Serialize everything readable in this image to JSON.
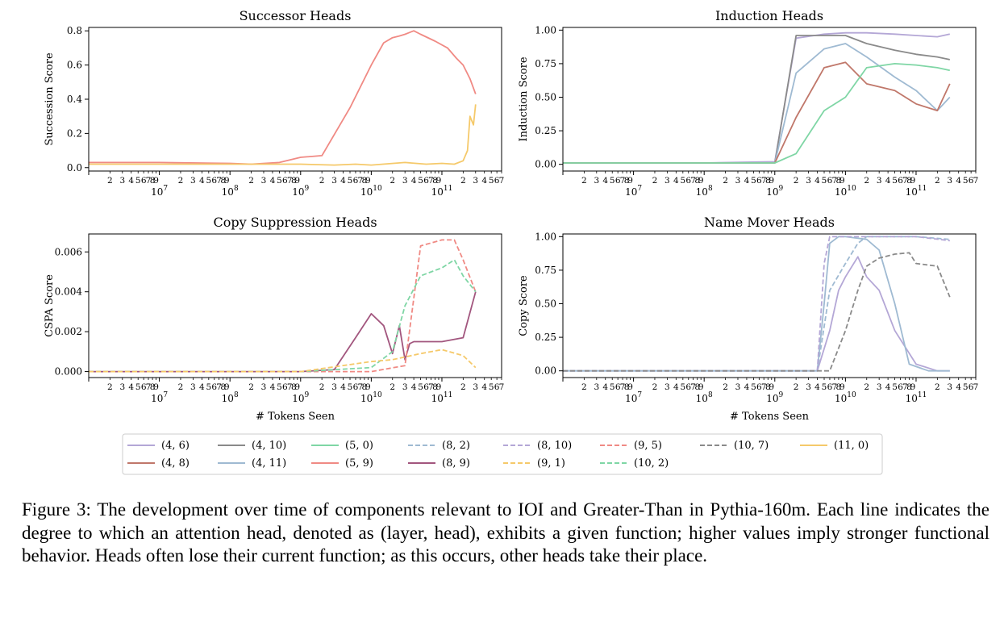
{
  "chart_data": [
    {
      "type": "line",
      "title": "Successor Heads",
      "xlabel": "",
      "ylabel": "Succession Score",
      "xscale": "log",
      "xlim": [
        1000000,
        700000000000
      ],
      "ylim": [
        -0.02,
        0.82
      ],
      "yticks": [
        "0.0",
        "0.2",
        "0.4",
        "0.6",
        "0.8"
      ],
      "series": [
        {
          "name": "(5, 9)",
          "color": "#f08a84",
          "style": "solid",
          "x": [
            1000000,
            10000000,
            100000000,
            200000000,
            500000000,
            1000000000,
            2000000000,
            5000000000,
            10000000000,
            15000000000,
            20000000000,
            25000000000,
            30000000000,
            40000000000,
            50000000000,
            80000000000,
            120000000000,
            160000000000,
            200000000000,
            250000000000,
            300000000000
          ],
          "y": [
            0.03,
            0.03,
            0.025,
            0.02,
            0.03,
            0.06,
            0.07,
            0.35,
            0.6,
            0.73,
            0.76,
            0.77,
            0.78,
            0.8,
            0.78,
            0.74,
            0.7,
            0.64,
            0.6,
            0.52,
            0.43
          ]
        },
        {
          "name": "(11, 0)",
          "color": "#f5c96a",
          "style": "solid",
          "x": [
            1000000,
            10000000,
            100000000,
            1000000000,
            3000000000,
            6000000000,
            10000000000,
            30000000000,
            60000000000,
            100000000000,
            150000000000,
            200000000000,
            230000000000,
            250000000000,
            280000000000,
            300000000000
          ],
          "y": [
            0.02,
            0.02,
            0.02,
            0.02,
            0.015,
            0.02,
            0.015,
            0.03,
            0.02,
            0.025,
            0.02,
            0.04,
            0.1,
            0.3,
            0.25,
            0.37
          ]
        }
      ]
    },
    {
      "type": "line",
      "title": "Induction Heads",
      "xlabel": "",
      "ylabel": "Induction Score",
      "xscale": "log",
      "xlim": [
        1000000,
        700000000000
      ],
      "ylim": [
        -0.05,
        1.02
      ],
      "yticks": [
        "0.00",
        "0.25",
        "0.50",
        "0.75",
        "1.00"
      ],
      "series": [
        {
          "name": "(4, 6)",
          "color": "#b4a7d6",
          "style": "solid",
          "x": [
            1000000,
            100000000,
            1000000000,
            2000000000,
            5000000000,
            10000000000,
            20000000000,
            50000000000,
            100000000000,
            200000000000,
            300000000000
          ],
          "y": [
            0.01,
            0.01,
            0.02,
            0.94,
            0.97,
            0.98,
            0.98,
            0.97,
            0.96,
            0.95,
            0.97
          ]
        },
        {
          "name": "(4, 10)",
          "color": "#8a8a8a",
          "style": "solid",
          "x": [
            1000000,
            100000000,
            1000000000,
            2000000000,
            5000000000,
            10000000000,
            20000000000,
            50000000000,
            100000000000,
            200000000000,
            300000000000
          ],
          "y": [
            0.01,
            0.01,
            0.01,
            0.96,
            0.96,
            0.96,
            0.9,
            0.85,
            0.82,
            0.8,
            0.78
          ]
        },
        {
          "name": "(4, 11)",
          "color": "#9fbad2",
          "style": "solid",
          "x": [
            1000000,
            100000000,
            1000000000,
            2000000000,
            5000000000,
            10000000000,
            20000000000,
            50000000000,
            100000000000,
            200000000000,
            300000000000
          ],
          "y": [
            0.01,
            0.01,
            0.01,
            0.68,
            0.86,
            0.9,
            0.8,
            0.65,
            0.55,
            0.4,
            0.5
          ]
        },
        {
          "name": "(4, 8)",
          "color": "#c0776a",
          "style": "solid",
          "x": [
            1000000,
            100000000,
            1000000000,
            2000000000,
            5000000000,
            10000000000,
            20000000000,
            50000000000,
            100000000000,
            200000000000,
            300000000000
          ],
          "y": [
            0.01,
            0.01,
            0.01,
            0.35,
            0.72,
            0.76,
            0.6,
            0.55,
            0.45,
            0.4,
            0.6
          ]
        },
        {
          "name": "(5, 0)",
          "color": "#7fd6a5",
          "style": "solid",
          "x": [
            1000000,
            100000000,
            1000000000,
            2000000000,
            5000000000,
            10000000000,
            20000000000,
            50000000000,
            100000000000,
            200000000000,
            300000000000
          ],
          "y": [
            0.01,
            0.01,
            0.01,
            0.08,
            0.4,
            0.5,
            0.72,
            0.75,
            0.74,
            0.72,
            0.7
          ]
        }
      ]
    },
    {
      "type": "line",
      "title": "Copy Suppression Heads",
      "xlabel": "# Tokens Seen",
      "ylabel": "CSPA Score",
      "xscale": "log",
      "xlim": [
        1000000,
        700000000000
      ],
      "ylim": [
        -0.0003,
        0.0069
      ],
      "yticks": [
        "0.000",
        "0.002",
        "0.004",
        "0.006"
      ],
      "series": [
        {
          "name": "(8, 9)",
          "color": "#a2567e",
          "style": "solid",
          "x": [
            1000000,
            100000000,
            1000000000,
            3000000000,
            6000000000,
            10000000000,
            15000000000,
            20000000000,
            25000000000,
            30000000000,
            35000000000,
            40000000000,
            60000000000,
            100000000000,
            200000000000,
            300000000000
          ],
          "y": [
            0.0,
            0.0,
            0.0,
            0.0001,
            0.0017,
            0.0029,
            0.0023,
            0.0009,
            0.0023,
            0.0006,
            0.0014,
            0.0015,
            0.0015,
            0.0015,
            0.0017,
            0.004
          ]
        },
        {
          "name": "(9, 5)",
          "color": "#f08a84",
          "style": "dashed",
          "x": [
            1000000,
            100000000,
            1000000000,
            10000000000,
            30000000000,
            50000000000,
            100000000000,
            150000000000,
            200000000000,
            300000000000
          ],
          "y": [
            0.0,
            0.0,
            0.0,
            0.0,
            0.0003,
            0.0063,
            0.0066,
            0.0066,
            0.0056,
            0.004
          ]
        },
        {
          "name": "(10, 2)",
          "color": "#7fd6a5",
          "style": "dashed",
          "x": [
            1000000,
            100000000,
            1000000000,
            10000000000,
            20000000000,
            30000000000,
            50000000000,
            100000000000,
            150000000000,
            200000000000,
            300000000000
          ],
          "y": [
            0.0,
            0.0,
            0.0,
            0.0002,
            0.001,
            0.0033,
            0.0048,
            0.0052,
            0.0056,
            0.0048,
            0.004
          ]
        },
        {
          "name": "(9, 1)",
          "color": "#f5c96a",
          "style": "dashed",
          "x": [
            1000000,
            100000000,
            1000000000,
            10000000000,
            20000000000,
            50000000000,
            100000000000,
            200000000000,
            300000000000
          ],
          "y": [
            0.0,
            0.0,
            0.0,
            0.0005,
            0.0006,
            0.0009,
            0.0011,
            0.0008,
            0.0002
          ]
        }
      ]
    },
    {
      "type": "line",
      "title": "Name Mover Heads",
      "xlabel": "# Tokens Seen",
      "ylabel": "Copy Score",
      "xscale": "log",
      "xlim": [
        1000000,
        700000000000
      ],
      "ylim": [
        -0.05,
        1.02
      ],
      "yticks": [
        "0.00",
        "0.25",
        "0.50",
        "0.75",
        "1.00"
      ],
      "series": [
        {
          "name": "(4, 6)",
          "color": "#b4a7d6",
          "style": "solid",
          "x": [
            1000000,
            100000000,
            1000000000,
            4000000000,
            6000000000,
            8000000000,
            10000000000,
            15000000000,
            20000000000,
            30000000000,
            50000000000,
            100000000000,
            200000000000,
            300000000000
          ],
          "y": [
            0.0,
            0.0,
            0.0,
            0.0,
            0.3,
            0.6,
            0.7,
            0.85,
            0.7,
            0.6,
            0.3,
            0.05,
            0.0,
            0.0
          ]
        },
        {
          "name": "(4, 11)",
          "color": "#9fbad2",
          "style": "solid",
          "x": [
            1000000,
            100000000,
            1000000000,
            4000000000,
            5000000000,
            6000000000,
            8000000000,
            10000000000,
            20000000000,
            30000000000,
            50000000000,
            80000000000,
            150000000000,
            300000000000
          ],
          "y": [
            0.0,
            0.0,
            0.0,
            0.0,
            0.5,
            0.95,
            1.0,
            1.0,
            0.98,
            0.9,
            0.5,
            0.05,
            0.0,
            0.0
          ]
        },
        {
          "name": "(8, 2)",
          "color": "#9fbad2",
          "style": "dashed",
          "x": [
            1000000,
            100000000,
            1000000000,
            4000000000,
            6000000000,
            10000000000,
            15000000000,
            20000000000,
            50000000000,
            100000000000,
            300000000000
          ],
          "y": [
            0.0,
            0.0,
            0.0,
            0.0,
            0.6,
            0.8,
            0.95,
            1.0,
            1.0,
            1.0,
            0.98
          ]
        },
        {
          "name": "(8, 10)",
          "color": "#b4a7d6",
          "style": "dashed",
          "x": [
            1000000,
            100000000,
            1000000000,
            4000000000,
            5000000000,
            6000000000,
            10000000000,
            50000000000,
            100000000000,
            300000000000
          ],
          "y": [
            0.0,
            0.0,
            0.0,
            0.0,
            0.8,
            1.0,
            1.0,
            1.0,
            1.0,
            0.97
          ]
        },
        {
          "name": "(10, 7)",
          "color": "#8a8a8a",
          "style": "dashed",
          "x": [
            1000000,
            100000000,
            1000000000,
            6000000000,
            10000000000,
            15000000000,
            20000000000,
            30000000000,
            50000000000,
            80000000000,
            100000000000,
            200000000000,
            300000000000
          ],
          "y": [
            0.0,
            0.0,
            0.0,
            0.0,
            0.3,
            0.6,
            0.78,
            0.84,
            0.87,
            0.88,
            0.8,
            0.78,
            0.55
          ]
        }
      ]
    }
  ],
  "legend": {
    "entries": [
      {
        "label": "(4, 6)",
        "color": "#b4a7d6",
        "style": "solid"
      },
      {
        "label": "(4, 10)",
        "color": "#8a8a8a",
        "style": "solid"
      },
      {
        "label": "(5, 0)",
        "color": "#7fd6a5",
        "style": "solid"
      },
      {
        "label": "(8, 2)",
        "color": "#9fbad2",
        "style": "dashed"
      },
      {
        "label": "(8, 10)",
        "color": "#b4a7d6",
        "style": "dashed"
      },
      {
        "label": "(9, 5)",
        "color": "#f08a84",
        "style": "dashed"
      },
      {
        "label": "(10, 7)",
        "color": "#8a8a8a",
        "style": "dashed"
      },
      {
        "label": "(11, 0)",
        "color": "#f5c96a",
        "style": "solid"
      },
      {
        "label": "(4, 8)",
        "color": "#c0776a",
        "style": "solid"
      },
      {
        "label": "(4, 11)",
        "color": "#9fbad2",
        "style": "solid"
      },
      {
        "label": "(5, 9)",
        "color": "#f08a84",
        "style": "solid"
      },
      {
        "label": "(8, 9)",
        "color": "#a2567e",
        "style": "solid"
      },
      {
        "label": "(9, 1)",
        "color": "#f5c96a",
        "style": "dashed"
      },
      {
        "label": "(10, 2)",
        "color": "#7fd6a5",
        "style": "dashed"
      }
    ]
  },
  "caption": "Figure 3: The development over time of components relevant to IOI and Greater-Than in Pythia-160m. Each line indicates the degree to which an attention head, denoted as (layer, head), exhibits a given function; higher values imply stronger functional behavior. Heads often lose their current function; as this occurs, other heads take their place."
}
